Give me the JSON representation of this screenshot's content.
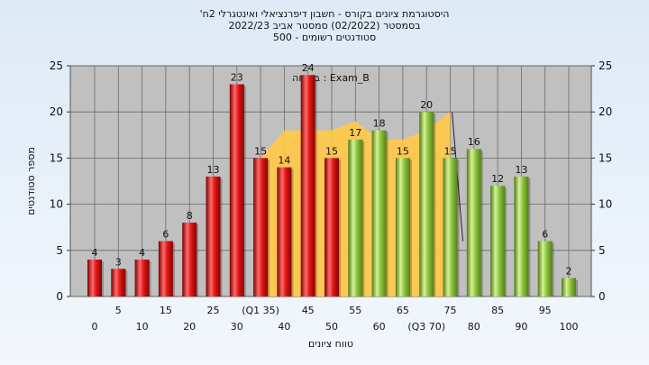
{
  "chart_data": {
    "type": "bar",
    "title_lines": [
      "'היסטוגרמת ציונים בקורס - חשבון דיפרנציאלי ואינטגרלי 2ח",
      "בסמסטר  (02/2022)  סמסטר אביב 2022/23",
      "סטודנטים רשומים - 500"
    ],
    "xlabel": "טווח ציונים",
    "ylabel": "מספר סטודנטים",
    "ylim": [
      0,
      25
    ],
    "y_ticks": [
      "0",
      "5",
      "10",
      "15",
      "20",
      "25"
    ],
    "annotation": "בשיחה : Exam_B",
    "categories": [
      "0",
      "5",
      "10",
      "15",
      "20",
      "25",
      "30",
      "(Q1 35)",
      "40",
      "45",
      "50",
      "55",
      "60",
      "65",
      "(Q3 70)",
      "75",
      "80",
      "85",
      "90",
      "95",
      "100"
    ],
    "values": [
      4,
      3,
      4,
      6,
      8,
      13,
      23,
      15,
      14,
      24,
      15,
      17,
      18,
      15,
      20,
      15,
      16,
      12,
      13,
      6,
      2
    ],
    "bar_colors": [
      "red",
      "red",
      "red",
      "red",
      "red",
      "red",
      "red",
      "red",
      "red",
      "red",
      "red",
      "green",
      "green",
      "green",
      "green",
      "green",
      "green",
      "green",
      "green",
      "green",
      "green"
    ],
    "background_area": {
      "x_from": "(Q1 35)",
      "x_to": "(Q3 70)",
      "values": [
        15,
        18,
        18,
        18,
        19,
        17,
        17,
        18,
        20
      ]
    },
    "colors": {
      "red_bar": "#e02020",
      "green_bar": "#8cc63e",
      "area": "#ffc94a",
      "plot_background": "#c0c0c0"
    },
    "grid": true
  }
}
